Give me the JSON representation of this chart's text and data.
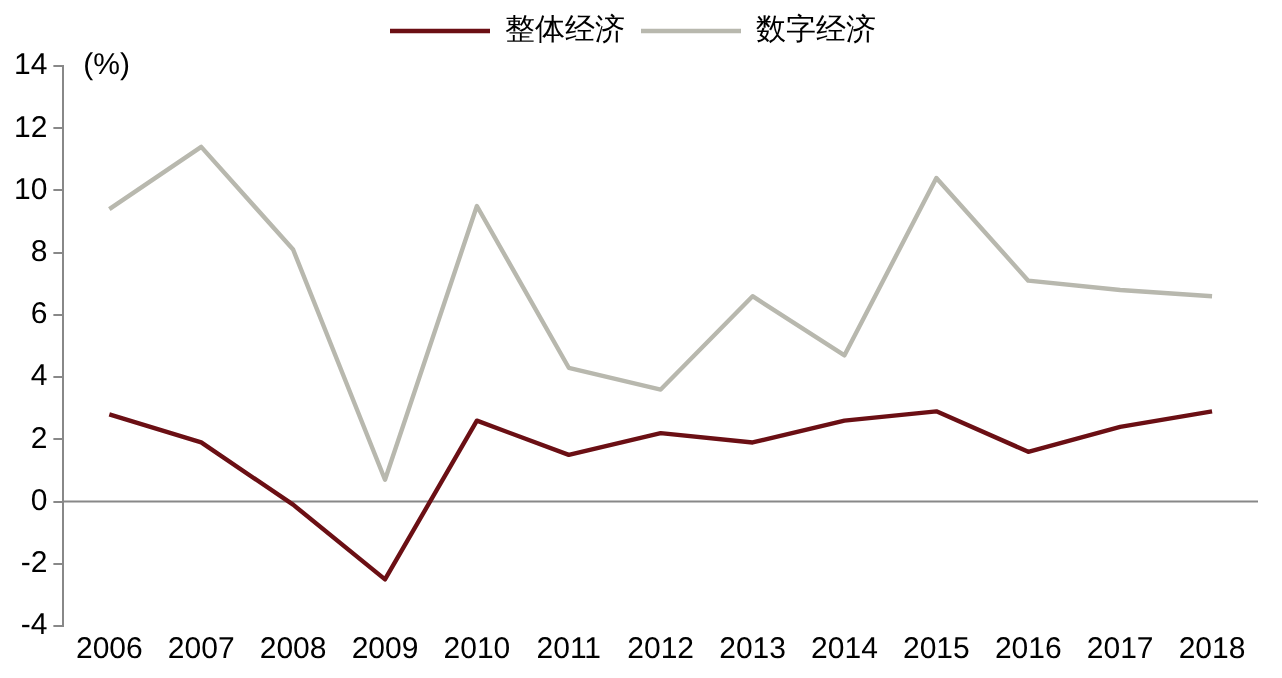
{
  "chart_data": {
    "type": "line",
    "ylabel": "(%)",
    "categories": [
      "2006",
      "2007",
      "2008",
      "2009",
      "2010",
      "2011",
      "2012",
      "2013",
      "2014",
      "2015",
      "2016",
      "2017",
      "2018"
    ],
    "series": [
      {
        "name": "整体经济",
        "color": "#6b0f14",
        "values": [
          2.8,
          1.9,
          -0.1,
          -2.5,
          2.6,
          1.5,
          2.2,
          1.9,
          2.6,
          2.9,
          1.6,
          2.4,
          2.9
        ]
      },
      {
        "name": "数字经济",
        "color": "#b8b8ae",
        "values": [
          9.4,
          11.4,
          8.1,
          0.7,
          9.5,
          4.3,
          3.6,
          6.6,
          4.7,
          10.4,
          7.1,
          6.8,
          6.6
        ]
      }
    ],
    "ref_lines": [
      {
        "axis": "y",
        "value": 0,
        "color": "#888888"
      }
    ],
    "ylim": [
      -4,
      14
    ],
    "yticks": [
      -4,
      -2,
      0,
      2,
      4,
      6,
      8,
      10,
      12,
      14
    ],
    "grid": false,
    "legend": "top",
    "marker": "none",
    "line_style": "solid"
  }
}
